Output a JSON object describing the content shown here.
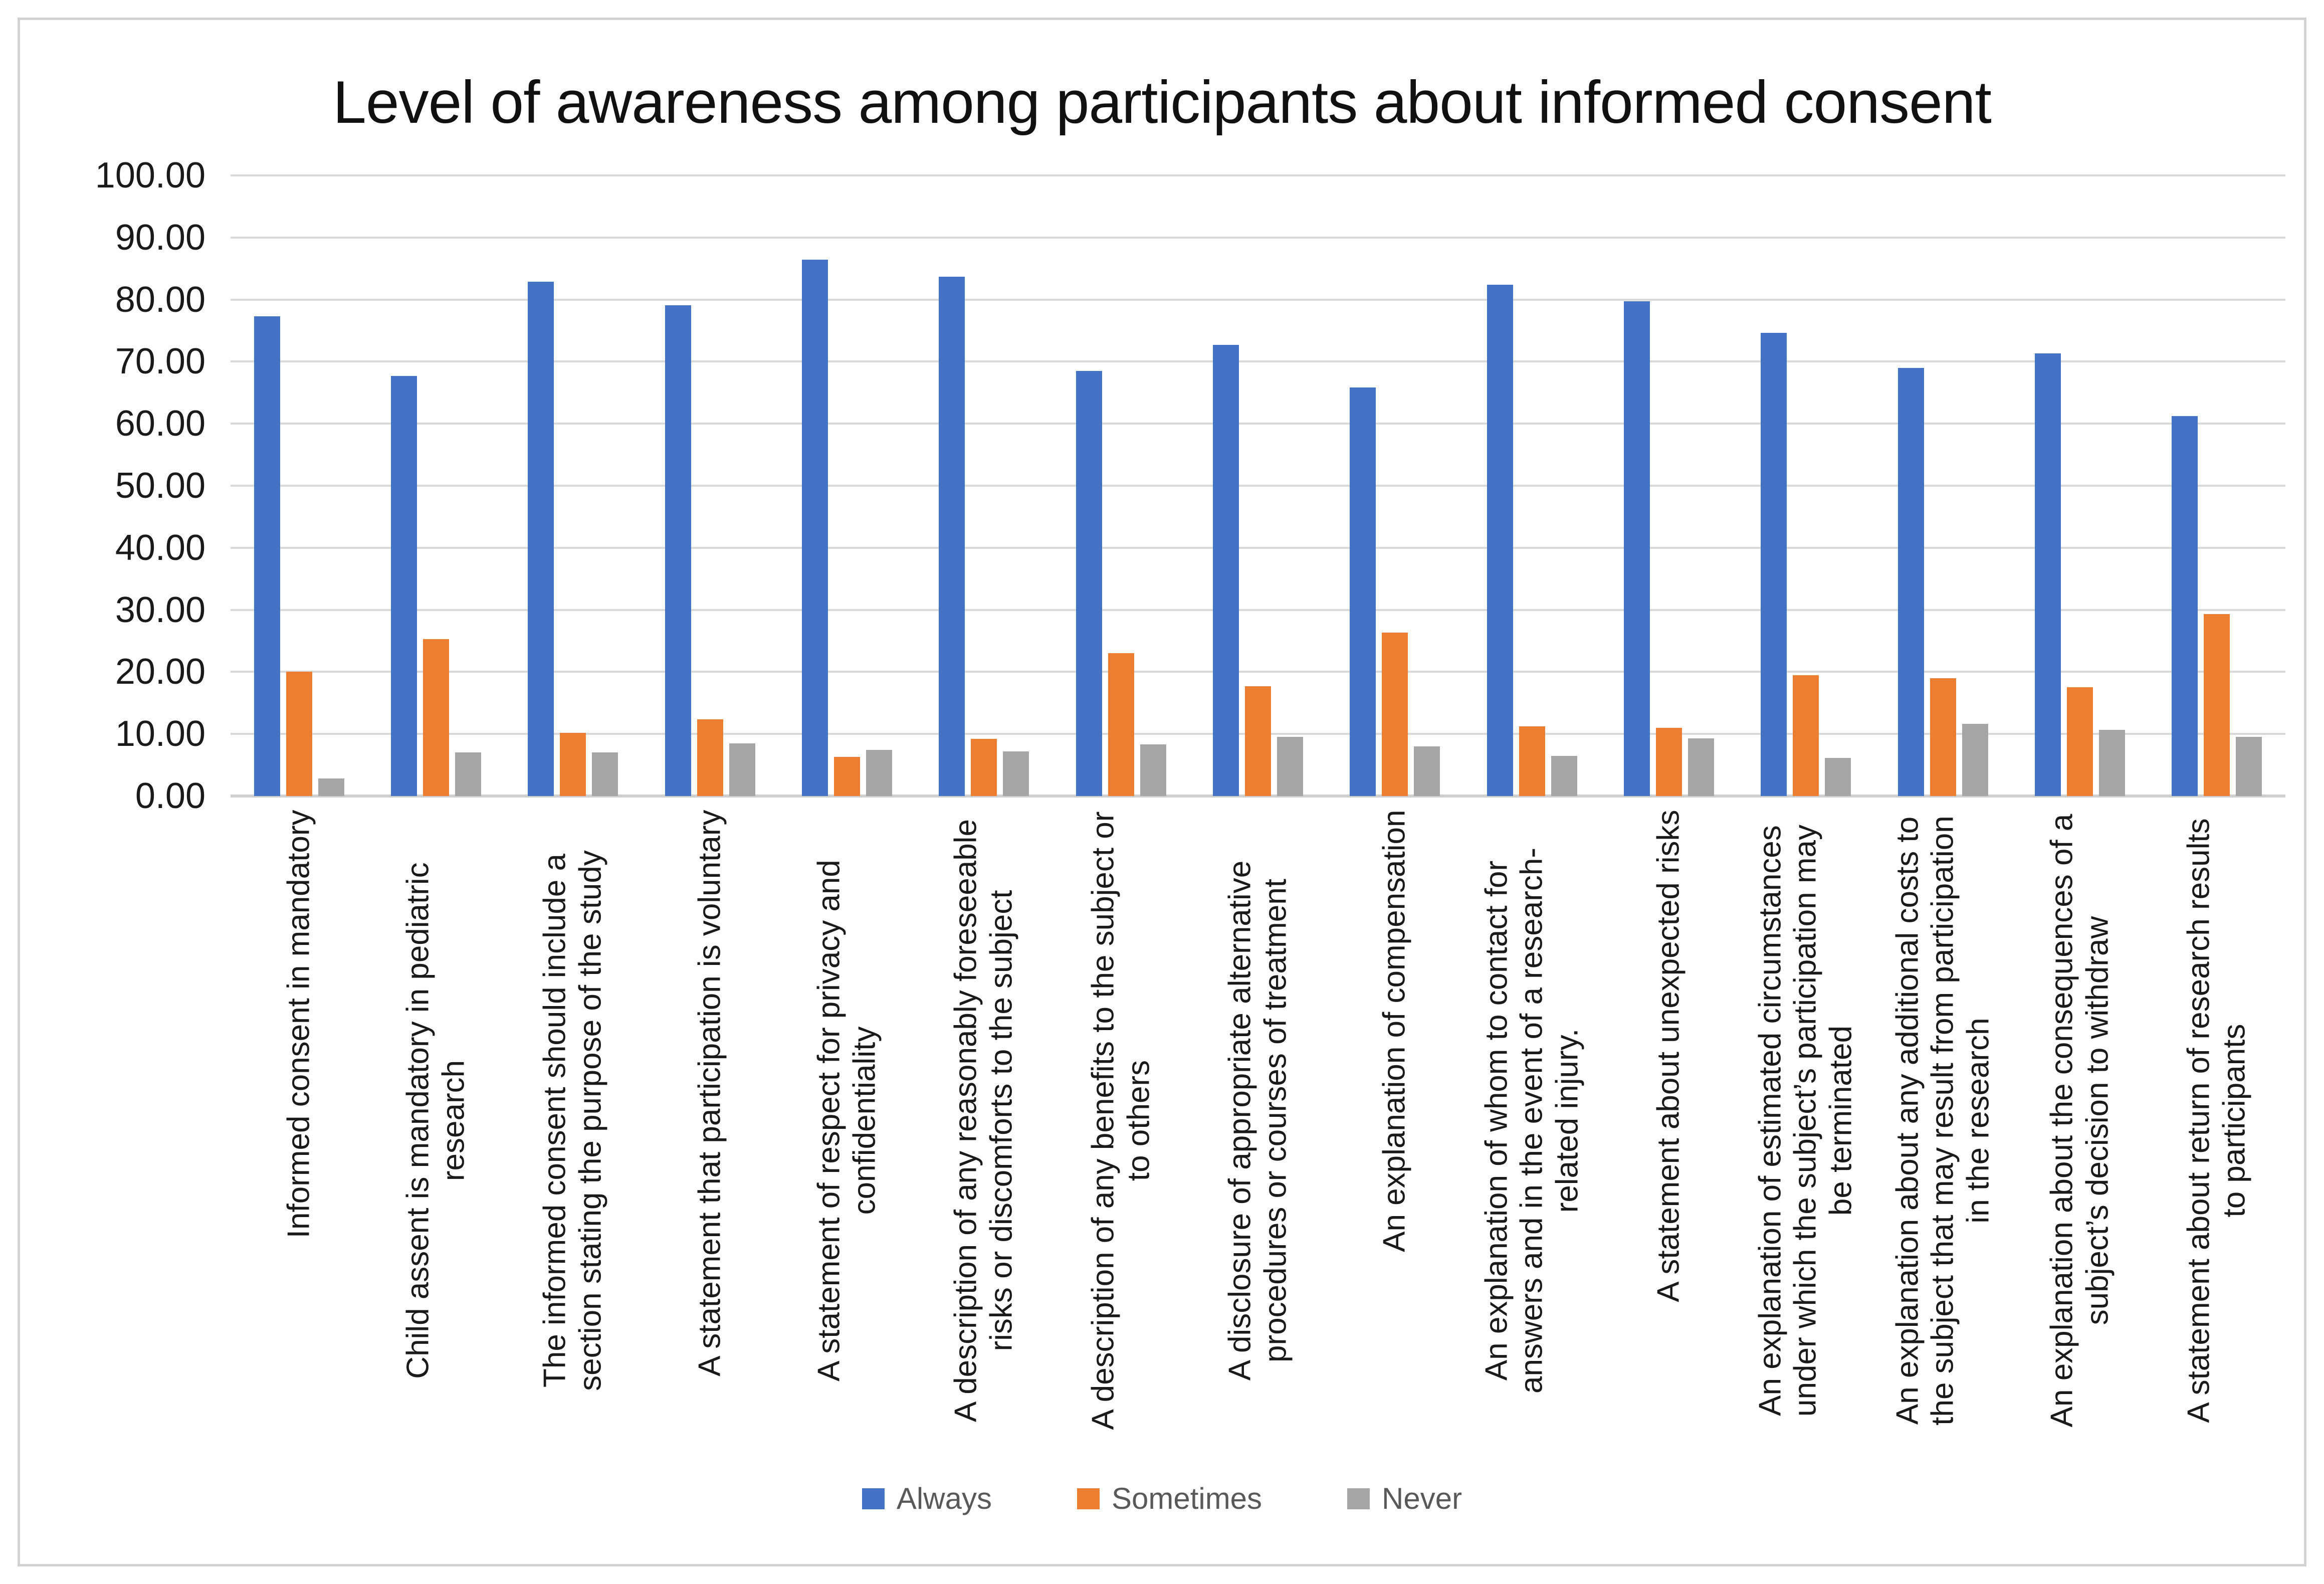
{
  "chart_data": {
    "type": "bar",
    "title": "Level of awareness among participants about informed consent",
    "categories": [
      "Informed consent in mandatory",
      "Child assent is mandatory in pediatric research",
      "The informed consent should include a section stating the purpose of the study",
      "A statement that participation is voluntary",
      "A statement of respect for privacy and confidentiality",
      "A description of any reasonably foreseeable risks or discomforts to the subject",
      "A description of any benefits to the subject or to others",
      "A disclosure of appropriate alternative procedures or courses of treatment",
      "An explanation of compensation",
      "An explanation of whom to contact for answers and in the event of a research-related injury.",
      "A statement about unexpected risks",
      "An explanation of estimated circumstances under which the subject’s participation may be terminated",
      "An explanation about any additional costs to the subject that may result from participation in the research",
      "An explanation about the consequences of a subject’s decision to withdraw",
      "A statement about return of research results to participants"
    ],
    "series": [
      {
        "name": "Always",
        "color": "#4472C4",
        "values": [
          77.3,
          67.7,
          82.9,
          79.1,
          86.4,
          83.7,
          68.5,
          72.7,
          65.8,
          82.4,
          79.7,
          74.6,
          69.0,
          71.3,
          61.2
        ]
      },
      {
        "name": "Sometimes",
        "color": "#ED7D31",
        "values": [
          20.0,
          25.3,
          10.2,
          12.4,
          6.3,
          9.2,
          23.0,
          17.7,
          26.3,
          11.2,
          11.0,
          19.5,
          19.0,
          17.5,
          29.3
        ]
      },
      {
        "name": "Never",
        "color": "#A5A5A5",
        "values": [
          2.8,
          7.0,
          7.0,
          8.5,
          7.4,
          7.2,
          8.3,
          9.5,
          8.0,
          6.5,
          9.3,
          6.1,
          11.6,
          10.7,
          9.5
        ]
      }
    ],
    "ylim": [
      0,
      100
    ],
    "ytick_step": 10,
    "y_ticks": [
      "0.00",
      "10.00",
      "20.00",
      "30.00",
      "40.00",
      "50.00",
      "60.00",
      "70.00",
      "80.00",
      "90.00",
      "100.00"
    ],
    "grid": true,
    "legend_position": "bottom"
  },
  "colors": {
    "gridline": "#D9D9D9",
    "axis_line": "#CFCFCF",
    "frame_border": "#D2D2D2",
    "title_text": "#111111",
    "tick_text": "#1a1a1a",
    "legend_text": "#595959",
    "background": "#FFFFFF"
  }
}
